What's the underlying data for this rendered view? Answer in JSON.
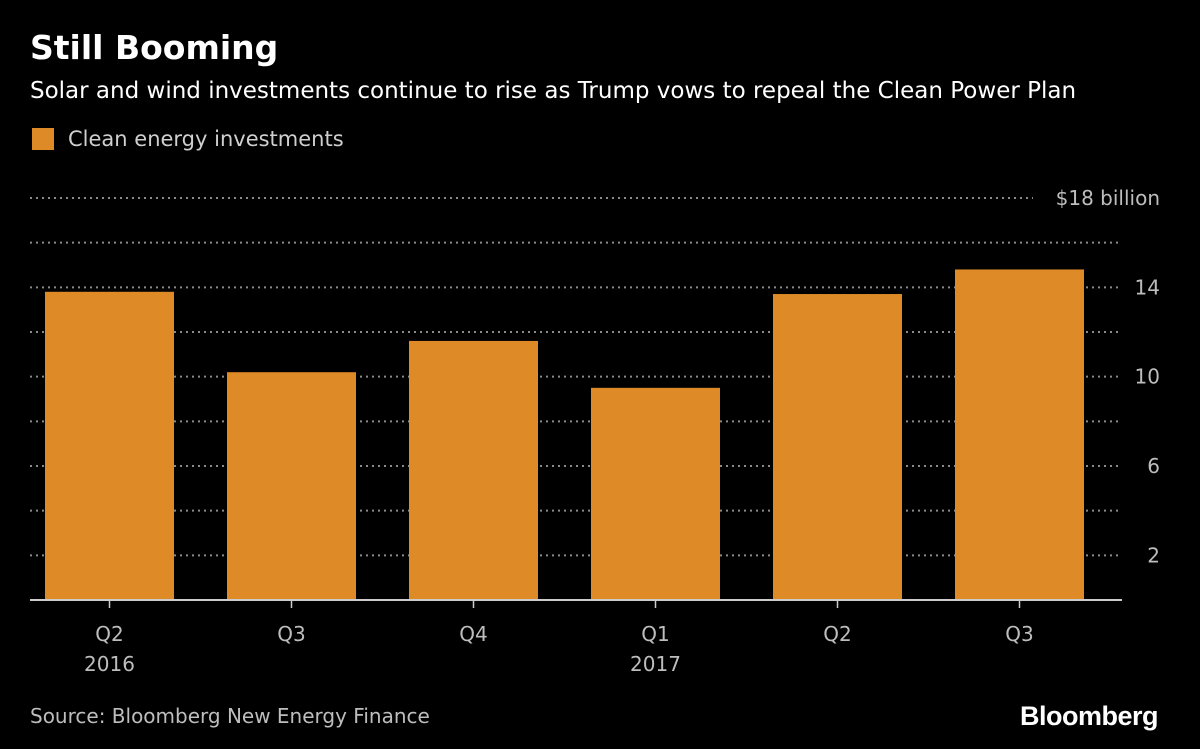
{
  "header": {
    "title": "Still Booming",
    "subtitle": "Solar and wind investments continue to rise as Trump vows to repeal the Clean Power Plan"
  },
  "footer": {
    "source": "Source: Bloomberg New Energy Finance",
    "brand": "Bloomberg"
  },
  "colors": {
    "background": "#000000",
    "bar": "#de8a26",
    "grid": "#8a8a8a",
    "axis": "#cccccc",
    "text_muted": "#bdbdbd"
  },
  "chart_data": {
    "type": "bar",
    "categories": [
      "Q2",
      "Q3",
      "Q4",
      "Q1",
      "Q2",
      "Q3"
    ],
    "category_years": [
      "2016",
      "",
      "",
      "2017",
      "",
      ""
    ],
    "series": [
      {
        "name": "Clean energy investments",
        "values": [
          13.8,
          10.2,
          11.6,
          9.5,
          13.7,
          14.8
        ]
      }
    ],
    "ylim": [
      0,
      18
    ],
    "y_ticks": [
      2,
      6,
      10,
      14,
      18
    ],
    "y_tick_labels": [
      "2",
      "6",
      "10",
      "14",
      "$18 billion"
    ],
    "grid_lines": [
      2,
      4,
      6,
      8,
      10,
      12,
      14,
      16,
      18
    ],
    "grid": true,
    "legend_position": "top-left",
    "xlabel": "",
    "ylabel": ""
  }
}
